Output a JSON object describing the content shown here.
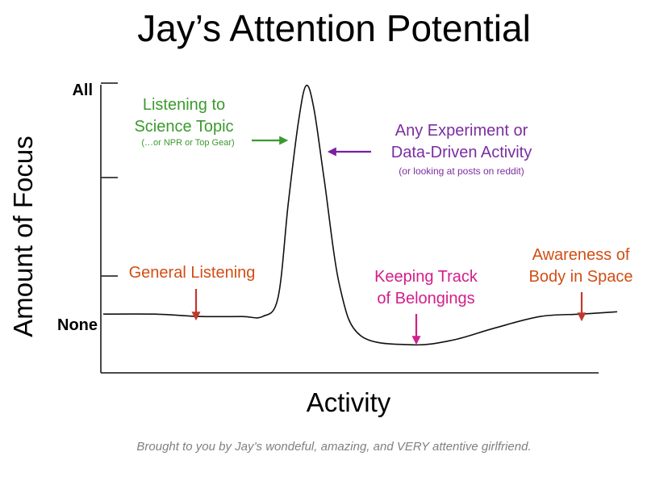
{
  "chart_data": {
    "type": "line",
    "title": "Jay’s Attention Potential",
    "xlabel": "Activity",
    "ylabel": "Amount of Focus",
    "y_tick_labels": [
      "None",
      "All"
    ],
    "ylim": [
      "None",
      "All"
    ],
    "grid": false,
    "series": [
      {
        "points": [
          [
            0,
            0.03
          ],
          [
            0.1,
            0.03
          ],
          [
            0.19,
            0.02
          ],
          [
            0.27,
            0.02
          ],
          [
            0.31,
            0.02
          ],
          [
            0.34,
            0.1
          ],
          [
            0.36,
            0.5
          ],
          [
            0.38,
            0.85
          ],
          [
            0.395,
            1.0
          ],
          [
            0.41,
            0.9
          ],
          [
            0.43,
            0.6
          ],
          [
            0.46,
            0.15
          ],
          [
            0.5,
            -0.06
          ],
          [
            0.6,
            -0.1
          ],
          [
            0.68,
            -0.08
          ],
          [
            0.76,
            -0.03
          ],
          [
            0.85,
            0.02
          ],
          [
            0.93,
            0.03
          ],
          [
            1.0,
            0.04
          ]
        ]
      }
    ],
    "annotations": [
      {
        "id": "general-listening",
        "lines": [
          "General Listening"
        ],
        "color": "#d14e15"
      },
      {
        "id": "science-topic",
        "lines": [
          "Listening to",
          "Science Topic"
        ],
        "note": "(…or NPR or Top Gear)",
        "color": "#3a9a2e"
      },
      {
        "id": "experiment",
        "lines": [
          "Any Experiment or",
          "Data-Driven Activity"
        ],
        "note": "(or looking at posts on reddit)",
        "color": "#7a2ea0"
      },
      {
        "id": "belongings",
        "lines": [
          "Keeping Track",
          "of Belongings"
        ],
        "color": "#d11f8c"
      },
      {
        "id": "awareness",
        "lines": [
          "Awareness of",
          "Body in Space"
        ],
        "color": "#d14e15"
      }
    ]
  },
  "credit": "Brought to you by Jay’s wondeful, amazing, and VERY attentive girlfriend."
}
